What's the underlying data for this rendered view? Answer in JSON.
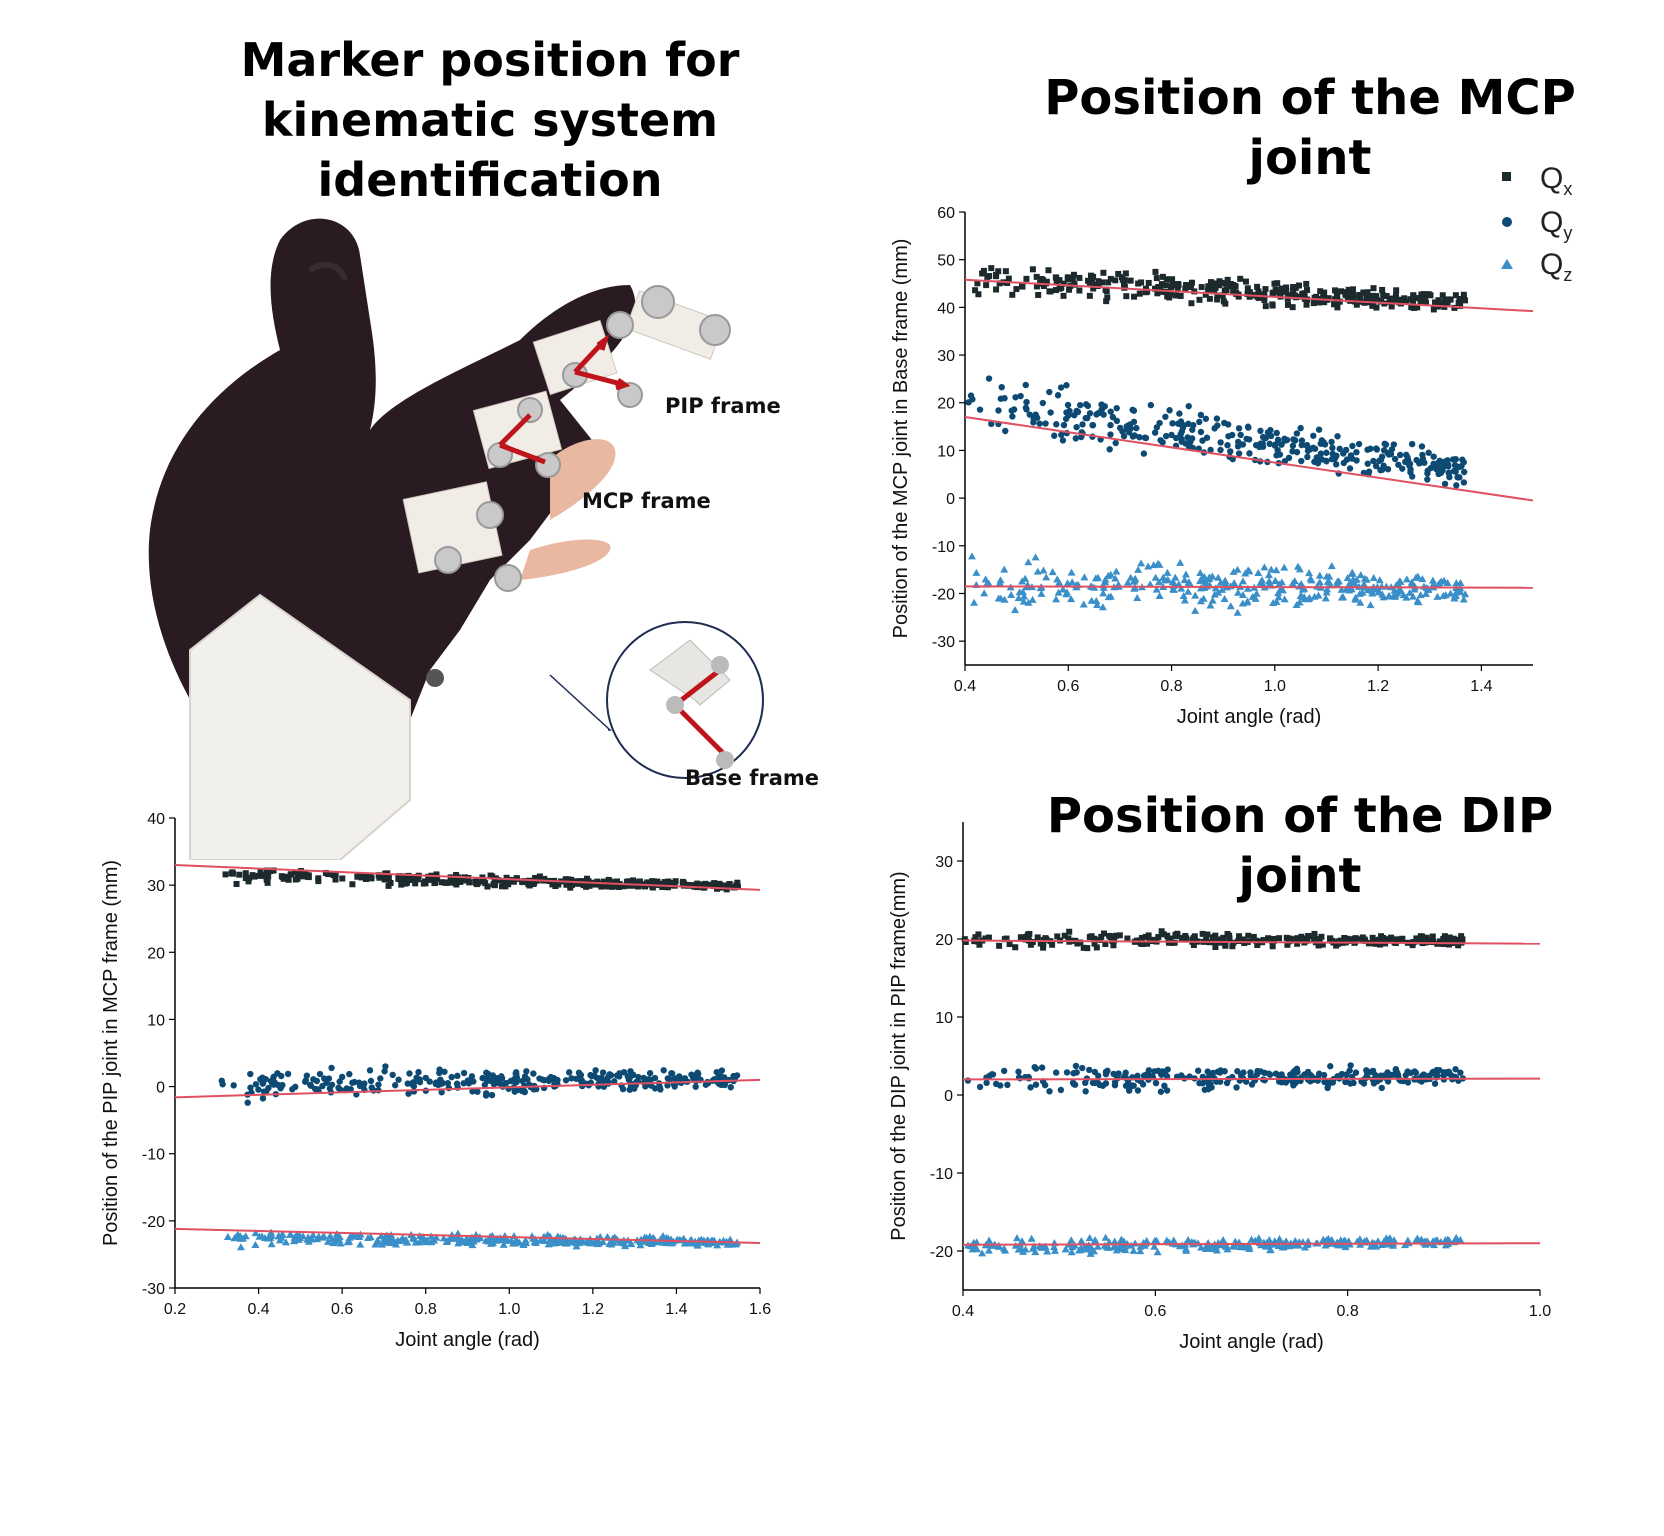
{
  "titles": {
    "marker_line1": "Marker position for",
    "marker_line2": "kinematic system identification",
    "mcp": "Position of the MCP joint",
    "dip": "Position of the DIP joint"
  },
  "photo_labels": {
    "pip": "PIP frame",
    "mcp": "MCP frame",
    "base": "Base frame"
  },
  "legend": {
    "items": [
      {
        "label": "Q",
        "sub": "x",
        "marker": "square",
        "color": "#1c2a2e"
      },
      {
        "label": "Q",
        "sub": "y",
        "marker": "circle",
        "color": "#0d4a73"
      },
      {
        "label": "Q",
        "sub": "z",
        "marker": "triangle",
        "color": "#3a8fc8"
      }
    ]
  },
  "colors": {
    "qx": "#1c2a2e",
    "qy": "#0d4a73",
    "qz": "#3a8fc8",
    "fit": "#e05060",
    "glove": "#2a1a22"
  },
  "chart_data": [
    {
      "id": "mcp",
      "type": "scatter",
      "title": "Position of the MCP joint",
      "xlabel": "Joint angle (rad)",
      "ylabel": "Position of the MCP joint in Base frame (mm)",
      "xlim": [
        0.4,
        1.5
      ],
      "ylim": [
        -35,
        60
      ],
      "xticks": [
        0.4,
        0.6,
        0.8,
        1.0,
        1.2,
        1.4
      ],
      "xtick_labels": [
        "0.4",
        "0.6",
        "0.8",
        "1.0",
        "1.2",
        "1.4"
      ],
      "yticks": [
        -30,
        -20,
        -10,
        0,
        10,
        20,
        30,
        40,
        50,
        60
      ],
      "ytick_labels": [
        "-30",
        "-20",
        "-10",
        "0",
        "10",
        "20",
        "30",
        "40",
        "50",
        "60"
      ],
      "series": [
        {
          "name": "Qx",
          "x_range": [
            0.4,
            1.37
          ],
          "center": [
            46,
            41
          ],
          "spread": 5,
          "count": 340,
          "fit": [
            [
              0.4,
              45.8
            ],
            [
              1.5,
              39.2
            ]
          ]
        },
        {
          "name": "Qy",
          "x_range": [
            0.4,
            1.37
          ],
          "center": [
            20,
            6
          ],
          "spread": 9,
          "count": 340,
          "fit": [
            [
              0.4,
              17
            ],
            [
              1.5,
              -0.5
            ]
          ]
        },
        {
          "name": "Qz",
          "x_range": [
            0.4,
            1.37
          ],
          "center": [
            -18,
            -19
          ],
          "spread": 8,
          "count": 340,
          "fit": [
            [
              0.4,
              -18.5
            ],
            [
              1.5,
              -18.8
            ]
          ]
        }
      ]
    },
    {
      "id": "pip",
      "type": "scatter",
      "title": "",
      "xlabel": "Joint angle (rad)",
      "ylabel": "Position of the PIP joint in MCP frame (mm)",
      "xlim": [
        0.2,
        1.6
      ],
      "ylim": [
        -30,
        40
      ],
      "xticks": [
        0.2,
        0.4,
        0.6,
        0.8,
        1.0,
        1.2,
        1.4,
        1.6
      ],
      "xtick_labels": [
        "0.2",
        "0.4",
        "0.6",
        "0.8",
        "1.0",
        "1.2",
        "1.4",
        "1.6"
      ],
      "yticks": [
        -30,
        -20,
        -10,
        0,
        10,
        20,
        30,
        40
      ],
      "ytick_labels": [
        "-30",
        "-20",
        "-10",
        "0",
        "10",
        "20",
        "30",
        "40"
      ],
      "series": [
        {
          "name": "Qx",
          "x_range": [
            0.31,
            1.55
          ],
          "center": [
            31.5,
            29.8
          ],
          "spread": 1.6,
          "count": 320,
          "fit": [
            [
              0.2,
              33
            ],
            [
              1.6,
              29.3
            ]
          ]
        },
        {
          "name": "Qy",
          "x_range": [
            0.31,
            1.55
          ],
          "center": [
            0.5,
            1
          ],
          "spread": 3.5,
          "count": 320,
          "fit": [
            [
              0.2,
              -1.6
            ],
            [
              1.6,
              1
            ]
          ]
        },
        {
          "name": "Qz",
          "x_range": [
            0.31,
            1.55
          ],
          "center": [
            -22.5,
            -23.2
          ],
          "spread": 1.6,
          "count": 320,
          "fit": [
            [
              0.2,
              -21.2
            ],
            [
              1.6,
              -23.3
            ]
          ]
        }
      ]
    },
    {
      "id": "dip",
      "type": "scatter",
      "title": "Position of the DIP joint",
      "xlabel": "Joint angle (rad)",
      "ylabel": "Position of the DIP joint in PIP frame(mm)",
      "xlim": [
        0.4,
        1.0
      ],
      "ylim": [
        -25,
        35
      ],
      "xticks": [
        0.4,
        0.6,
        0.8,
        1.0
      ],
      "xtick_labels": [
        "0.4",
        "0.6",
        "0.8",
        "1.0"
      ],
      "yticks": [
        -20,
        -10,
        0,
        10,
        20,
        30
      ],
      "ytick_labels": [
        "-20",
        "-10",
        "0",
        "10",
        "20",
        "30"
      ],
      "series": [
        {
          "name": "Qx",
          "x_range": [
            0.4,
            0.92
          ],
          "center": [
            20,
            19.8
          ],
          "spread": 1.6,
          "count": 280,
          "fit": [
            [
              0.4,
              19.8
            ],
            [
              1.0,
              19.4
            ]
          ]
        },
        {
          "name": "Qy",
          "x_range": [
            0.4,
            0.92
          ],
          "center": [
            2,
            2.4
          ],
          "spread": 3,
          "count": 280,
          "fit": [
            [
              0.4,
              2
            ],
            [
              1.0,
              2.1
            ]
          ]
        },
        {
          "name": "Qz",
          "x_range": [
            0.4,
            0.92
          ],
          "center": [
            -19.5,
            -18.8
          ],
          "spread": 1.5,
          "count": 280,
          "fit": [
            [
              0.4,
              -19.2
            ],
            [
              1.0,
              -19
            ]
          ]
        }
      ]
    }
  ]
}
